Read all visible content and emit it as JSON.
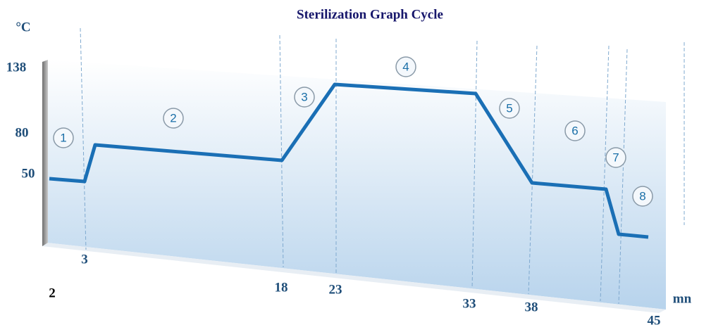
{
  "title": "Sterilization Graph Cycle",
  "y_unit": "°C",
  "y_labels": [
    "138",
    "80",
    "50"
  ],
  "x_unit": "mn",
  "x_labels": [
    "2",
    "3",
    "18",
    "23",
    "33",
    "38",
    "45"
  ],
  "phases": [
    "1",
    "2",
    "3",
    "4",
    "5",
    "6",
    "7",
    "8"
  ]
}
